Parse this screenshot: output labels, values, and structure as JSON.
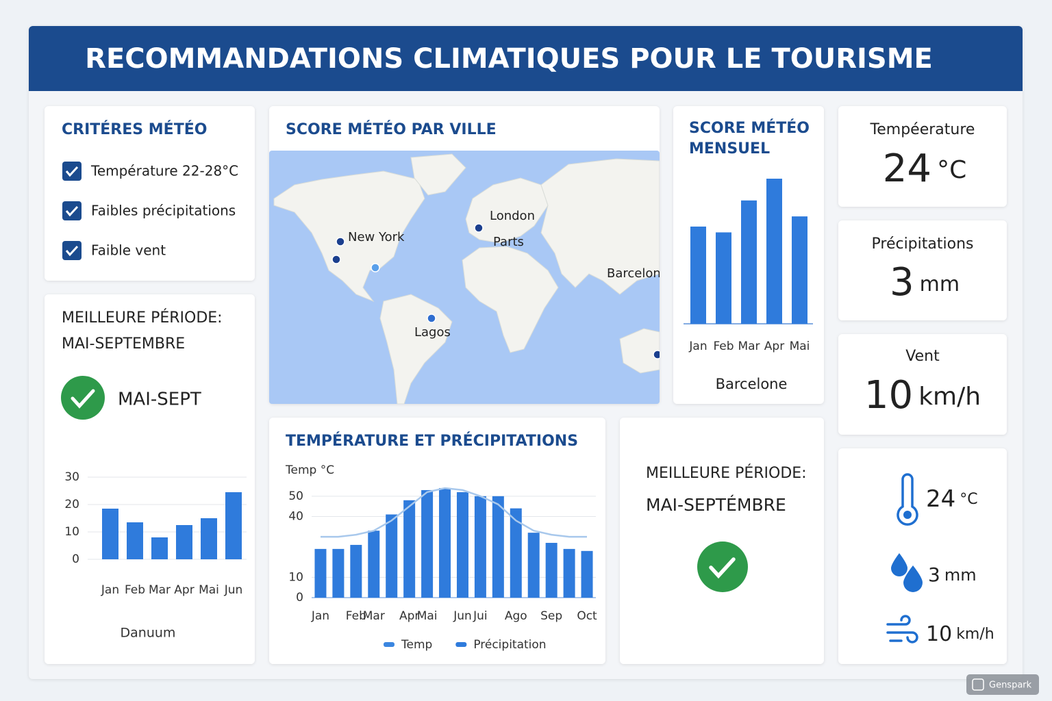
{
  "header": {
    "title": "RECOMMANDATIONS CLIMATIQUES POUR LE TOURISME"
  },
  "criteria": {
    "title": "CRITÉRES MÉTÉO",
    "items": [
      "Température 22-28°C",
      "Faibles précipitations",
      "Faible vent"
    ]
  },
  "best_period_left": {
    "title": "MEILLEURE PÉRIODE:",
    "period": "MAI-SEPTEMBRE",
    "badge": "MAI-SEPT"
  },
  "map": {
    "title": "SCORE MÉTÉO PAR VILLE",
    "cities": [
      "London",
      "New York",
      "Parts",
      "Barcelone",
      "Lagos"
    ]
  },
  "chart_data": [
    {
      "type": "bar",
      "categories": [
        "Jan",
        "Feb",
        "Mar",
        "Apr",
        "Mai",
        "Jun"
      ],
      "values": [
        18.5,
        13.5,
        8,
        12.5,
        15,
        24.5
      ],
      "color": "#2f7bdc",
      "ylim": [
        0,
        30
      ],
      "yticks": [
        0,
        10,
        20,
        30
      ],
      "grid": true,
      "caption": "Danuum"
    },
    {
      "type": "bar",
      "title": "SCORE MÉTÉO MENSUEL",
      "categories": [
        "Jan",
        "Feb",
        "Mar",
        "Apr",
        "Mai"
      ],
      "values": [
        67,
        63,
        85,
        100,
        74
      ],
      "color": "#2f7bdc",
      "caption": "Barcelone"
    },
    {
      "type": "combo",
      "title": "TEMPÉRATURE ET PRÉCIPITATIONS",
      "ylabel": "Temp  °C",
      "categories": [
        "Jan",
        null,
        "Feb",
        "Mar",
        null,
        "Apr",
        "Mai",
        null,
        "Jun",
        "Jui",
        null,
        "Ago",
        null,
        "Sep",
        null,
        "Oct"
      ],
      "series": [
        {
          "name": "Temp",
          "type": "line",
          "color": "#a8c8ec",
          "values": [
            30,
            30,
            31,
            33,
            38,
            45,
            52,
            54,
            53,
            50,
            46,
            38,
            33,
            31,
            30,
            30
          ]
        },
        {
          "name": "Précipitation",
          "type": "bar",
          "color": "#2f7bdc",
          "values": [
            24,
            24,
            26,
            33,
            41,
            48,
            53,
            54,
            52,
            50,
            50,
            44,
            32,
            27,
            24,
            23
          ]
        }
      ],
      "ylim": [
        0,
        55
      ],
      "yticks": [
        0,
        10,
        40,
        50
      ],
      "grid": true
    }
  ],
  "kpis": [
    {
      "label": "Tempéerature",
      "value": "24",
      "unit": "°C"
    },
    {
      "label": "Précipitations",
      "value": "3",
      "unit": "mm"
    },
    {
      "label": "Vent",
      "value": "10",
      "unit": "km/h"
    }
  ],
  "best_period_right": {
    "title": "MEILLEURE PÉRIODE:",
    "period": "MAI-SEPTÉMBRE"
  },
  "summary": [
    {
      "value": "24",
      "unit": "°C"
    },
    {
      "value": "3",
      "unit": "mm"
    },
    {
      "value": "10",
      "unit": "km/h"
    }
  ],
  "watermark": "Genspark"
}
